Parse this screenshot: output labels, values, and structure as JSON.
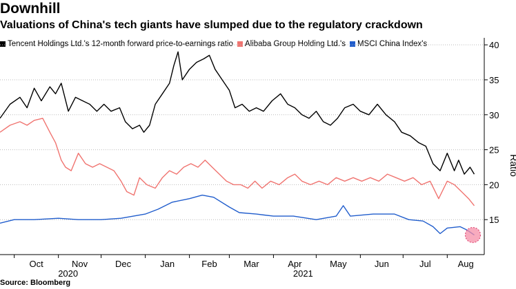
{
  "title": "Downhill",
  "subtitle": "Valuations of China's tech giants have slumped due to the regulatory crackdown",
  "source": "Source: Bloomberg",
  "colors": {
    "tencent": "#000000",
    "alibaba": "#f07470",
    "msci": "#1f5ccc",
    "marker": "#f58fa8"
  },
  "chart_data": {
    "type": "line",
    "title": "Downhill",
    "ylabel": "Ratio",
    "xlabel": "",
    "ylim": [
      10,
      41
    ],
    "yticks": [
      15,
      20,
      25,
      30,
      35,
      40
    ],
    "xaxis": {
      "start": "2020-09-21",
      "end": "2021-08-27",
      "month_ticks": [
        "2020-10-01",
        "2020-11-01",
        "2020-12-01",
        "2021-01-01",
        "2021-02-01",
        "2021-03-01",
        "2021-04-01",
        "2021-05-01",
        "2021-06-01",
        "2021-07-01",
        "2021-08-01"
      ],
      "month_labels": [
        "Oct",
        "Nov",
        "Dec",
        "Jan",
        "Feb",
        "Mar",
        "Apr",
        "May",
        "Jun",
        "Jul",
        "Aug"
      ],
      "year_labels": [
        {
          "label": "2020",
          "date": "2020-11-01"
        },
        {
          "label": "2021",
          "date": "2021-04-15"
        }
      ]
    },
    "legend": [
      "Tencent Holdings Ltd.'s 12-month forward price-to-earnings ratio",
      "Alibaba Group Holding Ltd.'s",
      "MSCI China Index's"
    ],
    "series": [
      {
        "name": "Tencent Holdings Ltd.'s 12-month forward price-to-earnings ratio",
        "color": "#000000",
        "points": [
          [
            "2020-09-21",
            29.5
          ],
          [
            "2020-09-28",
            31.5
          ],
          [
            "2020-10-05",
            32.5
          ],
          [
            "2020-10-10",
            31.0
          ],
          [
            "2020-10-15",
            33.8
          ],
          [
            "2020-10-20",
            32.0
          ],
          [
            "2020-10-26",
            34.0
          ],
          [
            "2020-10-30",
            33.0
          ],
          [
            "2020-11-03",
            34.5
          ],
          [
            "2020-11-08",
            30.5
          ],
          [
            "2020-11-13",
            32.5
          ],
          [
            "2020-11-18",
            32.0
          ],
          [
            "2020-11-23",
            31.5
          ],
          [
            "2020-11-28",
            30.5
          ],
          [
            "2020-12-03",
            31.5
          ],
          [
            "2020-12-08",
            30.5
          ],
          [
            "2020-12-14",
            31.0
          ],
          [
            "2020-12-18",
            29.0
          ],
          [
            "2020-12-23",
            28.0
          ],
          [
            "2020-12-28",
            28.5
          ],
          [
            "2020-12-31",
            27.5
          ],
          [
            "2021-01-04",
            28.5
          ],
          [
            "2021-01-08",
            31.5
          ],
          [
            "2021-01-13",
            33.0
          ],
          [
            "2021-01-18",
            34.5
          ],
          [
            "2021-01-21",
            37.0
          ],
          [
            "2021-01-24",
            39.0
          ],
          [
            "2021-01-27",
            35.0
          ],
          [
            "2021-02-01",
            36.5
          ],
          [
            "2021-02-06",
            37.5
          ],
          [
            "2021-02-11",
            38.0
          ],
          [
            "2021-02-15",
            38.5
          ],
          [
            "2021-02-19",
            36.5
          ],
          [
            "2021-02-24",
            35.0
          ],
          [
            "2021-03-01",
            33.5
          ],
          [
            "2021-03-05",
            31.0
          ],
          [
            "2021-03-10",
            31.5
          ],
          [
            "2021-03-15",
            30.5
          ],
          [
            "2021-03-20",
            31.0
          ],
          [
            "2021-03-25",
            30.5
          ],
          [
            "2021-03-31",
            32.0
          ],
          [
            "2021-04-06",
            33.0
          ],
          [
            "2021-04-11",
            31.5
          ],
          [
            "2021-04-16",
            31.0
          ],
          [
            "2021-04-21",
            30.0
          ],
          [
            "2021-04-26",
            29.5
          ],
          [
            "2021-05-01",
            30.5
          ],
          [
            "2021-05-06",
            29.0
          ],
          [
            "2021-05-11",
            28.5
          ],
          [
            "2021-05-16",
            29.5
          ],
          [
            "2021-05-21",
            31.0
          ],
          [
            "2021-05-27",
            31.5
          ],
          [
            "2021-06-01",
            30.5
          ],
          [
            "2021-06-07",
            30.0
          ],
          [
            "2021-06-13",
            31.5
          ],
          [
            "2021-06-19",
            30.0
          ],
          [
            "2021-06-25",
            29.0
          ],
          [
            "2021-06-30",
            27.5
          ],
          [
            "2021-07-06",
            27.0
          ],
          [
            "2021-07-12",
            26.0
          ],
          [
            "2021-07-17",
            25.5
          ],
          [
            "2021-07-22",
            23.0
          ],
          [
            "2021-07-27",
            22.0
          ],
          [
            "2021-08-01",
            24.5
          ],
          [
            "2021-08-06",
            22.0
          ],
          [
            "2021-08-09",
            23.5
          ],
          [
            "2021-08-13",
            21.5
          ],
          [
            "2021-08-17",
            22.5
          ],
          [
            "2021-08-20",
            21.5
          ]
        ]
      },
      {
        "name": "Alibaba Group Holding Ltd.'s",
        "color": "#f07470",
        "points": [
          [
            "2020-09-21",
            27.5
          ],
          [
            "2020-09-28",
            28.5
          ],
          [
            "2020-10-05",
            29.0
          ],
          [
            "2020-10-10",
            28.5
          ],
          [
            "2020-10-15",
            29.2
          ],
          [
            "2020-10-21",
            29.5
          ],
          [
            "2020-10-26",
            27.5
          ],
          [
            "2020-10-30",
            26.0
          ],
          [
            "2020-11-03",
            23.5
          ],
          [
            "2020-11-06",
            22.5
          ],
          [
            "2020-11-10",
            22.0
          ],
          [
            "2020-11-15",
            24.5
          ],
          [
            "2020-11-20",
            23.0
          ],
          [
            "2020-11-25",
            22.5
          ],
          [
            "2020-11-30",
            23.0
          ],
          [
            "2020-12-05",
            22.5
          ],
          [
            "2020-12-10",
            22.0
          ],
          [
            "2020-12-15",
            20.5
          ],
          [
            "2020-12-19",
            19.0
          ],
          [
            "2020-12-24",
            18.5
          ],
          [
            "2020-12-28",
            21.0
          ],
          [
            "2021-01-02",
            20.0
          ],
          [
            "2021-01-08",
            19.5
          ],
          [
            "2021-01-13",
            21.0
          ],
          [
            "2021-01-18",
            22.0
          ],
          [
            "2021-01-23",
            21.5
          ],
          [
            "2021-01-28",
            22.5
          ],
          [
            "2021-02-02",
            23.0
          ],
          [
            "2021-02-07",
            22.5
          ],
          [
            "2021-02-12",
            23.5
          ],
          [
            "2021-02-17",
            22.5
          ],
          [
            "2021-02-22",
            21.5
          ],
          [
            "2021-02-27",
            20.5
          ],
          [
            "2021-03-04",
            20.0
          ],
          [
            "2021-03-09",
            20.0
          ],
          [
            "2021-03-14",
            19.5
          ],
          [
            "2021-03-19",
            20.5
          ],
          [
            "2021-03-24",
            19.5
          ],
          [
            "2021-03-30",
            20.5
          ],
          [
            "2021-04-05",
            20.0
          ],
          [
            "2021-04-11",
            21.0
          ],
          [
            "2021-04-16",
            21.5
          ],
          [
            "2021-04-21",
            20.5
          ],
          [
            "2021-04-27",
            20.0
          ],
          [
            "2021-05-03",
            20.5
          ],
          [
            "2021-05-09",
            20.0
          ],
          [
            "2021-05-15",
            21.0
          ],
          [
            "2021-05-21",
            20.5
          ],
          [
            "2021-05-27",
            21.0
          ],
          [
            "2021-06-02",
            20.5
          ],
          [
            "2021-06-08",
            21.0
          ],
          [
            "2021-06-14",
            20.5
          ],
          [
            "2021-06-20",
            21.5
          ],
          [
            "2021-06-26",
            21.0
          ],
          [
            "2021-07-02",
            20.5
          ],
          [
            "2021-07-08",
            21.0
          ],
          [
            "2021-07-14",
            20.0
          ],
          [
            "2021-07-20",
            20.5
          ],
          [
            "2021-07-26",
            18.0
          ],
          [
            "2021-08-01",
            20.5
          ],
          [
            "2021-08-06",
            20.0
          ],
          [
            "2021-08-11",
            19.0
          ],
          [
            "2021-08-16",
            18.0
          ],
          [
            "2021-08-20",
            17.0
          ]
        ]
      },
      {
        "name": "MSCI China Index's",
        "color": "#1f5ccc",
        "points": [
          [
            "2020-09-21",
            14.5
          ],
          [
            "2020-10-01",
            15.0
          ],
          [
            "2020-10-15",
            15.0
          ],
          [
            "2020-11-01",
            15.2
          ],
          [
            "2020-11-15",
            15.0
          ],
          [
            "2020-12-01",
            15.0
          ],
          [
            "2020-12-15",
            15.2
          ],
          [
            "2021-01-01",
            15.8
          ],
          [
            "2021-01-10",
            16.5
          ],
          [
            "2021-01-20",
            17.5
          ],
          [
            "2021-02-01",
            18.0
          ],
          [
            "2021-02-10",
            18.5
          ],
          [
            "2021-02-18",
            18.2
          ],
          [
            "2021-03-01",
            16.8
          ],
          [
            "2021-03-08",
            16.0
          ],
          [
            "2021-03-20",
            15.8
          ],
          [
            "2021-04-01",
            15.5
          ],
          [
            "2021-04-15",
            15.5
          ],
          [
            "2021-05-01",
            15.0
          ],
          [
            "2021-05-15",
            15.5
          ],
          [
            "2021-05-20",
            17.0
          ],
          [
            "2021-05-25",
            15.5
          ],
          [
            "2021-06-10",
            15.8
          ],
          [
            "2021-06-25",
            15.8
          ],
          [
            "2021-07-05",
            15.0
          ],
          [
            "2021-07-15",
            14.8
          ],
          [
            "2021-07-22",
            14.0
          ],
          [
            "2021-07-27",
            13.0
          ],
          [
            "2021-08-01",
            13.8
          ],
          [
            "2021-08-10",
            14.0
          ],
          [
            "2021-08-15",
            13.5
          ],
          [
            "2021-08-20",
            12.8
          ]
        ]
      }
    ],
    "annotations": [
      {
        "type": "highlight-circle",
        "date": "2021-08-19",
        "value": 12.8
      }
    ]
  }
}
